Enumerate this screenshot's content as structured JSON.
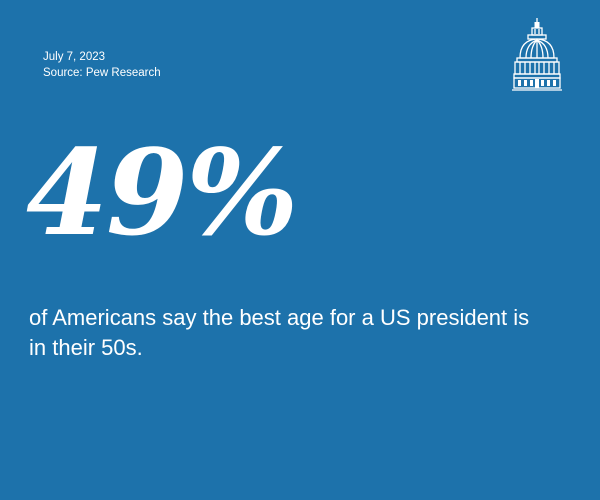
{
  "meta": {
    "date": "July 7, 2023",
    "source": "Source: Pew Research"
  },
  "stat": {
    "value": "49%",
    "caption": "of Americans say the best age for a US president is in their 50s."
  },
  "logo": {
    "icon": "capitol-dome-icon"
  },
  "colors": {
    "background": "#1d72ab",
    "text": "#ffffff"
  }
}
